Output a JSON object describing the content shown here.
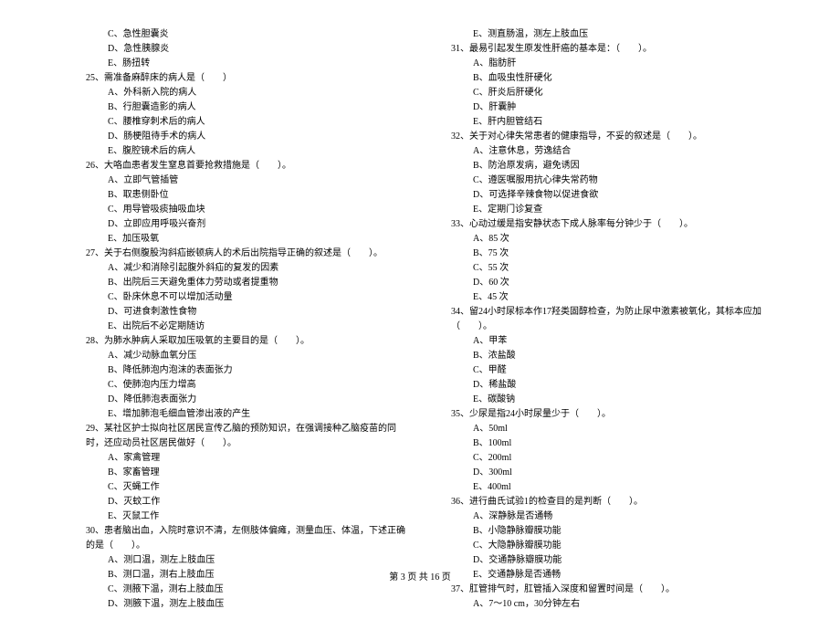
{
  "left": {
    "pre_options": [
      "C、急性胆囊炎",
      "D、急性胰腺炎",
      "E、肠扭转"
    ],
    "items": [
      {
        "q": "25、需准备麻醉床的病人是（　　）",
        "opts": [
          "A、外科新入院的病人",
          "B、行胆囊造影的病人",
          "C、腰椎穿刺术后的病人",
          "D、肠梗阻待手术的病人",
          "E、腹腔镜术后的病人"
        ]
      },
      {
        "q": "26、大咯血患者发生窒息首要抢救措施是（　　）。",
        "opts": [
          "A、立即气管插管",
          "B、取患侧卧位",
          "C、用导管吸痰抽吸血块",
          "D、立即应用呼吸兴奋剂",
          "E、加压吸氧"
        ]
      },
      {
        "q": "27、关于右侧腹股沟斜疝嵌顿病人的术后出院指导正确的叙述是（　　）。",
        "opts": [
          "A、减少和消除引起腹外斜疝的复发的因素",
          "B、出院后三天避免重体力劳动或者提重物",
          "C、卧床休息不可以增加活动量",
          "D、可进食刺激性食物",
          "E、出院后不必定期随访"
        ]
      },
      {
        "q": "28、为肺水肿病人采取加压吸氧的主要目的是（　　）。",
        "opts": [
          "A、减少动脉血氧分压",
          "B、降低肺泡内泡沫的表面张力",
          "C、使肺泡内压力增高",
          "D、降低肺泡表面张力",
          "E、增加肺泡毛细血管渗出液的产生"
        ]
      },
      {
        "q": "29、某社区护士拟向社区居民宣传乙脑的预防知识，在强调接种乙脑疫苗的同时，还应动员社区居民做好（　　）。",
        "opts": [
          "A、家禽管理",
          "B、家畜管理",
          "C、灭蝇工作",
          "D、灭蚊工作",
          "E、灭鼠工作"
        ]
      },
      {
        "q": "30、患者脑出血，入院时意识不清，左侧肢体偏瘫，测量血压、体温，下述正确的是（　　）。",
        "opts": [
          "A、测口温，测左上肢血压",
          "B、测口温，测右上肢血压",
          "C、测腋下温，测右上肢血压",
          "D、测腋下温，测左上肢血压"
        ]
      }
    ]
  },
  "right": {
    "pre_options": [
      "E、测直肠温，测左上肢血压"
    ],
    "items": [
      {
        "q": "31、最易引起发生原发性肝癌的基本是：（　　）。",
        "opts": [
          "A、脂肪肝",
          "B、血吸虫性肝硬化",
          "C、肝炎后肝硬化",
          "D、肝囊肿",
          "E、肝内胆管结石"
        ]
      },
      {
        "q": "32、关于对心律失常患者的健康指导，不妥的叙述是（　　）。",
        "opts": [
          "A、注意休息，劳逸结合",
          "B、防治原发病，避免诱因",
          "C、遵医嘱服用抗心律失常药物",
          "D、可选择辛辣食物以促进食欲",
          "E、定期门诊复查"
        ]
      },
      {
        "q": "33、心动过缓是指安静状态下成人脉率每分钟少于（　　）。",
        "opts": [
          "A、85 次",
          "B、75 次",
          "C、55 次",
          "D、60 次",
          "E、45 次"
        ]
      },
      {
        "q": "34、留24小时尿标本作17羟类固醇检查，为防止尿中激素被氧化，其标本应加（　　）。",
        "opts": [
          "A、甲苯",
          "B、浓盐酸",
          "C、甲醛",
          "D、稀盐酸",
          "E、碳酸钠"
        ]
      },
      {
        "q": "35、少尿是指24小时尿量少于（　　）。",
        "opts": [
          "A、50ml",
          "B、100ml",
          "C、200ml",
          "D、300ml",
          "E、400ml"
        ]
      },
      {
        "q": "36、进行曲氏试验1的检查目的是判断（　　）。",
        "opts": [
          "A、深静脉是否通畅",
          "B、小隐静脉瓣膜功能",
          "C、大隐静脉瓣膜功能",
          "D、交通静脉瓣膜功能",
          "E、交通静脉是否通畅"
        ]
      },
      {
        "q": "37、肛管排气时，肛管插入深度和留置时间是（　　）。",
        "opts": [
          "A、7～10 cm，30分钟左右"
        ]
      }
    ]
  },
  "footer": "第 3 页 共 16 页"
}
